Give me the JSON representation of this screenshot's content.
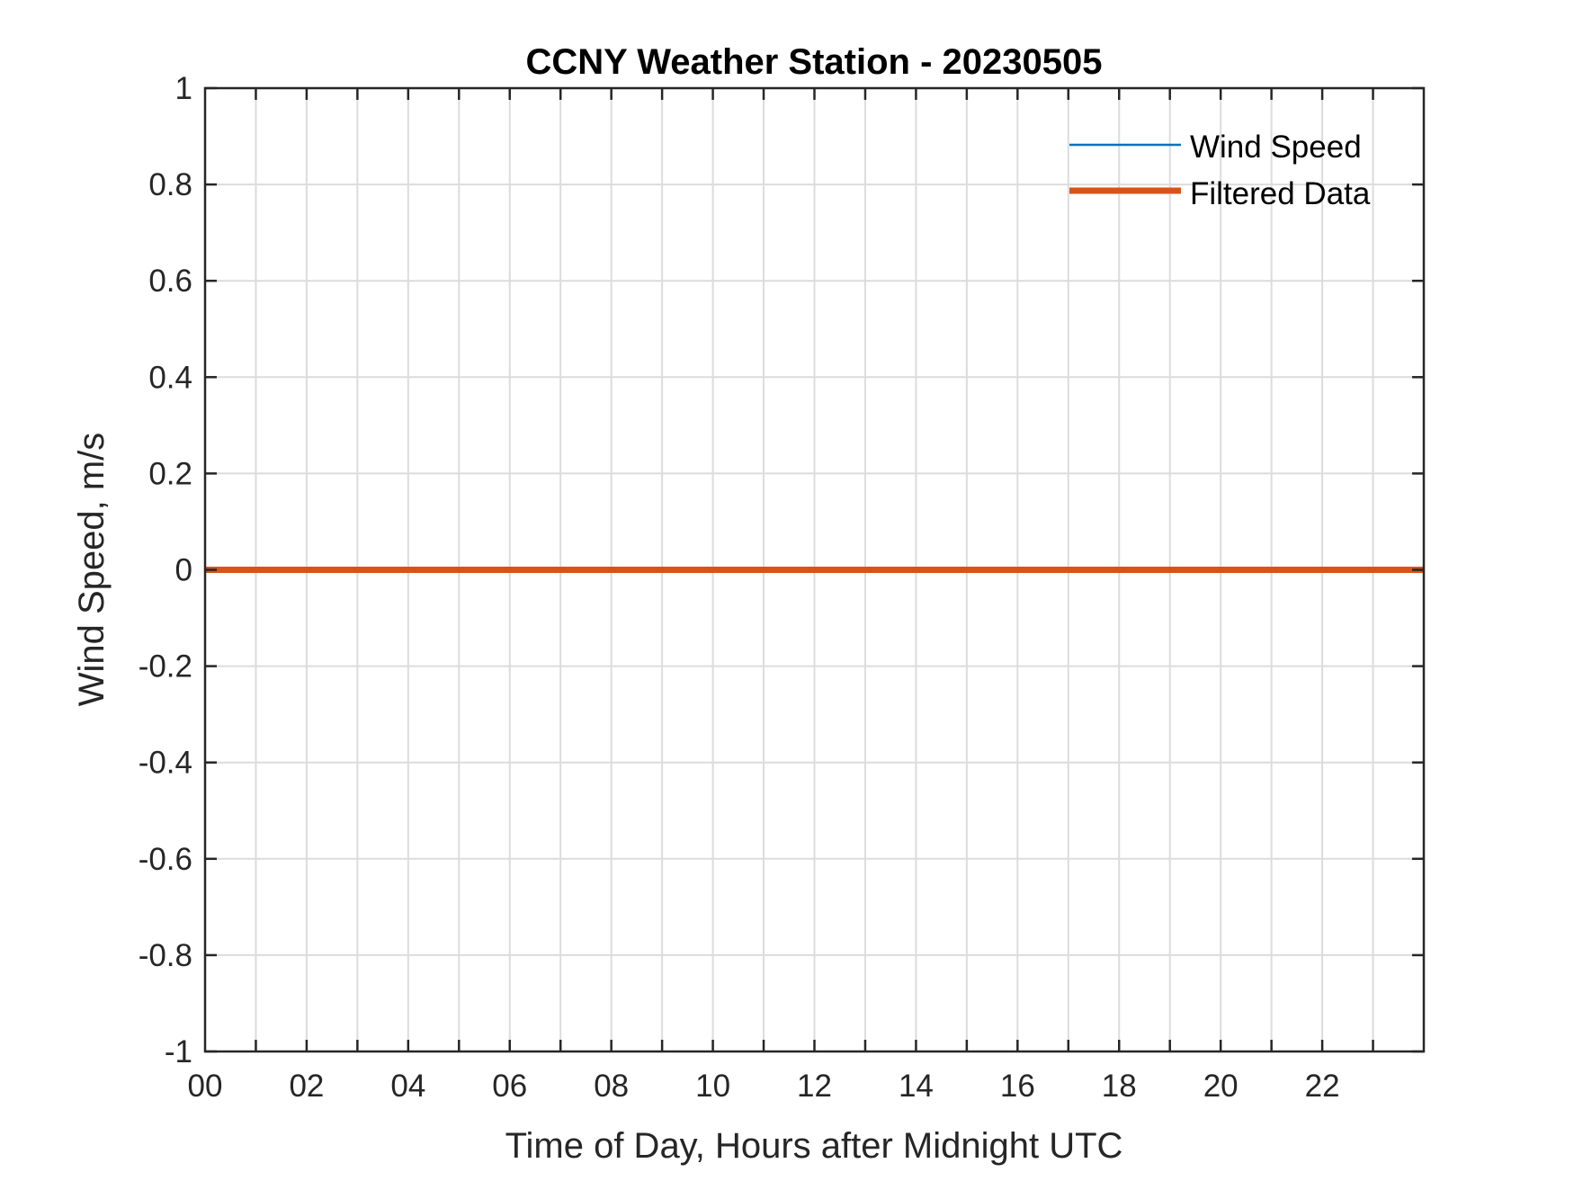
{
  "chart_data": {
    "type": "line",
    "title": "CCNY Weather Station - 20230505",
    "xlabel": "Time of Day, Hours after Midnight UTC",
    "ylabel": "Wind Speed, m/s",
    "xlim": [
      0,
      24
    ],
    "ylim": [
      -1,
      1
    ],
    "xticks": [
      0,
      2,
      4,
      6,
      8,
      10,
      12,
      14,
      16,
      18,
      20,
      22
    ],
    "xtick_labels": [
      "00",
      "02",
      "04",
      "06",
      "08",
      "10",
      "12",
      "14",
      "16",
      "18",
      "20",
      "22"
    ],
    "x_minor_grid_step": 1,
    "yticks": [
      1,
      0.8,
      0.6,
      0.4,
      0.2,
      0,
      -0.2,
      -0.4,
      -0.6,
      -0.8,
      -1
    ],
    "ytick_labels": [
      "1",
      "0.8",
      "0.6",
      "0.4",
      "0.2",
      "0",
      "-0.2",
      "-0.4",
      "-0.6",
      "-0.8",
      "-1"
    ],
    "grid": true,
    "legend_position": "top-right",
    "series": [
      {
        "name": "Wind Speed",
        "color": "#0072BD",
        "x": [
          0,
          24
        ],
        "y": [
          0,
          0
        ]
      },
      {
        "name": "Filtered Data",
        "color": "#D95319",
        "x": [
          0,
          24
        ],
        "y": [
          0,
          0
        ]
      }
    ]
  }
}
